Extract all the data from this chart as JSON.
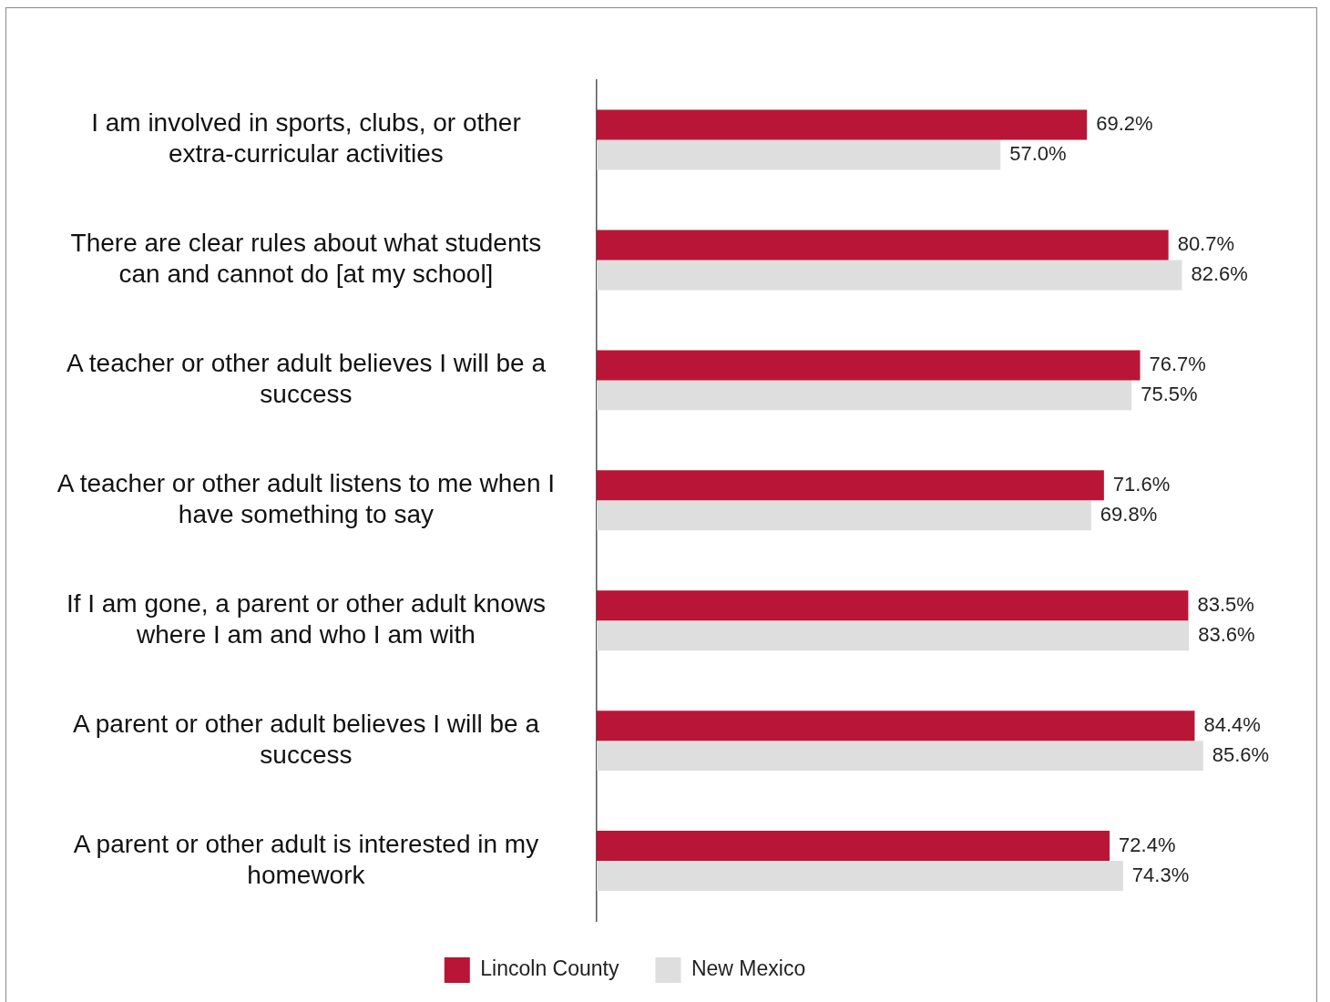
{
  "chart_data": {
    "type": "bar",
    "orientation": "horizontal",
    "categories": [
      "I am involved in sports, clubs, or other extra-curricular activities",
      "There are clear rules about what students can and cannot do [at my school]",
      "A teacher or other adult believes I will be a success",
      "A teacher or other adult listens to me when I have something to say",
      "If I am gone, a parent or other adult knows where I am and who I am with",
      "A parent or other adult believes I will be a success",
      "A parent or other adult is interested in my homework"
    ],
    "series": [
      {
        "name": "Lincoln County",
        "color": "#b91537",
        "values": [
          69.2,
          80.7,
          76.7,
          71.6,
          83.5,
          84.4,
          72.4
        ],
        "value_labels": [
          "69.2%",
          "80.7%",
          "76.7%",
          "71.6%",
          "83.5%",
          "84.4%",
          "72.4%"
        ]
      },
      {
        "name": "New Mexico",
        "color": "#dedede",
        "values": [
          57.0,
          82.6,
          75.5,
          69.8,
          83.6,
          85.6,
          74.3
        ],
        "value_labels": [
          "57.0%",
          "82.6%",
          "75.5%",
          "69.8%",
          "83.6%",
          "85.6%",
          "74.3%"
        ]
      }
    ],
    "tick_labels": "y",
    "legend": "bottom"
  }
}
